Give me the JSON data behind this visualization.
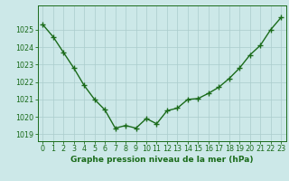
{
  "hours": [
    0,
    1,
    2,
    3,
    4,
    5,
    6,
    7,
    8,
    9,
    10,
    11,
    12,
    13,
    14,
    15,
    16,
    17,
    18,
    19,
    20,
    21,
    22,
    23
  ],
  "pressure": [
    1025.3,
    1024.6,
    1023.7,
    1022.8,
    1021.8,
    1021.0,
    1020.4,
    1019.35,
    1019.5,
    1019.35,
    1019.9,
    1019.6,
    1020.35,
    1020.5,
    1021.0,
    1021.05,
    1021.35,
    1021.7,
    1022.2,
    1022.8,
    1023.55,
    1024.1,
    1025.0,
    1025.7
  ],
  "line_color": "#1a6b1a",
  "marker": "+",
  "markersize": 4,
  "linewidth": 1.0,
  "bg_color": "#cce8e8",
  "grid_color": "#aacccc",
  "ylabel_ticks": [
    1019,
    1020,
    1021,
    1022,
    1023,
    1024,
    1025
  ],
  "ylim": [
    1018.6,
    1026.4
  ],
  "xlim": [
    -0.5,
    23.5
  ],
  "xlabel": "Graphe pression niveau de la mer (hPa)",
  "xlabel_fontsize": 6.5,
  "tick_fontsize": 5.8,
  "line_color_dark": "#1a5c1a"
}
